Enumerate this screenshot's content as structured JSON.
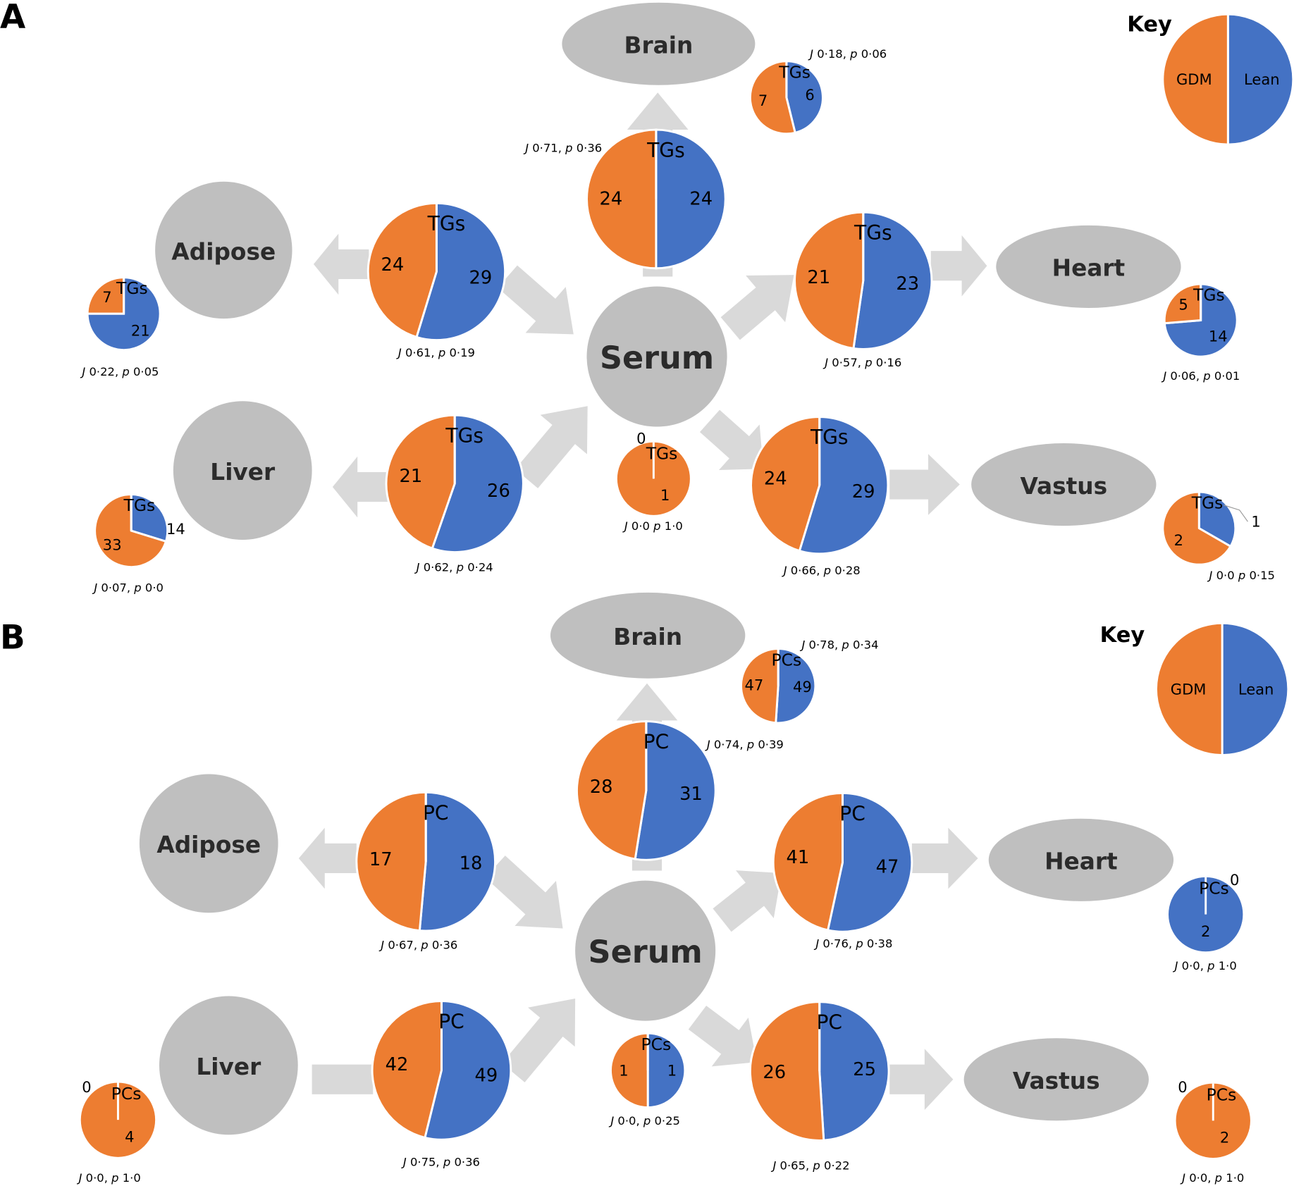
{
  "colors": {
    "gdm": "#ed7d31",
    "lean": "#4472c4",
    "organ": "#bfbfbf",
    "arrow": "#d9d9d9"
  },
  "panels": [
    {
      "letter": "A",
      "key": {
        "title": "Key",
        "gdm_label": "GDM",
        "lean_label": "Lean"
      },
      "organs": {
        "brain": "Brain",
        "adipose": "Adipose",
        "serum": "Serum",
        "heart": "Heart",
        "liver": "Liver",
        "vastus": "Vastus"
      },
      "pies": [
        {
          "id": "brain_serum",
          "label": "TGs",
          "gdm": 24,
          "lean": 24,
          "stat": {
            "j": "0·71",
            "p": "0·36",
            "sep": ", "
          }
        },
        {
          "id": "adipose_serum",
          "label": "TGs",
          "gdm": 24,
          "lean": 29,
          "stat": {
            "j": "0·61",
            "p": "0·19",
            "sep": ", "
          }
        },
        {
          "id": "heart_serum",
          "label": "TGs",
          "gdm": 21,
          "lean": 23,
          "stat": {
            "j": "0·57",
            "p": "0·16",
            "sep": ", "
          }
        },
        {
          "id": "liver_serum",
          "label": "TGs",
          "gdm": 21,
          "lean": 26,
          "stat": {
            "j": "0·62",
            "p": "0·24",
            "sep": ", "
          }
        },
        {
          "id": "vastus_serum",
          "label": "TGs",
          "gdm": 24,
          "lean": 29,
          "stat": {
            "j": "0·66",
            "p": "0·28",
            "sep": ", "
          }
        },
        {
          "id": "serum",
          "label": "TGs",
          "gdm": 1,
          "lean": 0,
          "stat": {
            "j": "0·0",
            "p": "1·0",
            "sep": " "
          }
        },
        {
          "id": "brain",
          "label": "TGs",
          "gdm": 7,
          "lean": 6,
          "stat": {
            "j": "0·18",
            "p": "0·06",
            "sep": ", "
          }
        },
        {
          "id": "adipose",
          "label": "TGs",
          "gdm": 7,
          "lean": 21,
          "stat": {
            "j": "0·22",
            "p": "0·05",
            "sep": ", "
          }
        },
        {
          "id": "heart",
          "label": "TGs",
          "gdm": 5,
          "lean": 14,
          "stat": {
            "j": "0·06",
            "p": "0·01",
            "sep": ", "
          }
        },
        {
          "id": "liver",
          "label": "TGs",
          "gdm": 33,
          "lean": 14,
          "stat": {
            "j": "0·07",
            "p": "0·0",
            "sep": ", "
          }
        },
        {
          "id": "vastus",
          "label": "TGs",
          "gdm": 2,
          "lean": 1,
          "stat": {
            "j": "0·0",
            "p": "0·15",
            "sep": " "
          }
        }
      ]
    },
    {
      "letter": "B",
      "key": {
        "title": "Key",
        "gdm_label": "GDM",
        "lean_label": "Lean"
      },
      "organs": {
        "brain": "Brain",
        "adipose": "Adipose",
        "serum": "Serum",
        "heart": "Heart",
        "liver": "Liver",
        "vastus": "Vastus"
      },
      "pies": [
        {
          "id": "brain_serum",
          "label": "PC",
          "gdm": 28,
          "lean": 31,
          "stat": {
            "j": "0·74",
            "p": "0·39",
            "sep": ", "
          }
        },
        {
          "id": "adipose_serum",
          "label": "PC",
          "gdm": 17,
          "lean": 18,
          "stat": {
            "j": "0·67",
            "p": "0·36",
            "sep": ", "
          }
        },
        {
          "id": "heart_serum",
          "label": "PC",
          "gdm": 41,
          "lean": 47,
          "stat": {
            "j": "0·76",
            "p": "0·38",
            "sep": ", "
          }
        },
        {
          "id": "liver_serum",
          "label": "PC",
          "gdm": 42,
          "lean": 49,
          "stat": {
            "j": "0·75",
            "p": "0·36",
            "sep": ", "
          }
        },
        {
          "id": "vastus_serum",
          "label": "PC",
          "gdm": 26,
          "lean": 25,
          "stat": {
            "j": "0·65",
            "p": "0·22",
            "sep": ", "
          }
        },
        {
          "id": "serum",
          "label": "PCs",
          "gdm": 1,
          "lean": 1,
          "stat": {
            "j": "0·0",
            "p": "0·25",
            "sep": ", "
          }
        },
        {
          "id": "brain",
          "label": "PCs",
          "gdm": 47,
          "lean": 49,
          "stat": {
            "j": "0·78",
            "p": "0·34",
            "sep": ", "
          }
        },
        {
          "id": "heart",
          "label": "PCs",
          "gdm": 0,
          "lean": 2,
          "stat": {
            "j": "0·0",
            "p": "1·0",
            "sep": ", "
          }
        },
        {
          "id": "liver",
          "label": "PCs",
          "gdm": 4,
          "lean": 0,
          "stat": {
            "j": "0·0",
            "p": "1·0",
            "sep": ", "
          }
        },
        {
          "id": "vastus",
          "label": "PCs",
          "gdm": 2,
          "lean": 0,
          "stat": {
            "j": "0·0",
            "p": "1·0",
            "sep": ", "
          }
        }
      ]
    }
  ]
}
